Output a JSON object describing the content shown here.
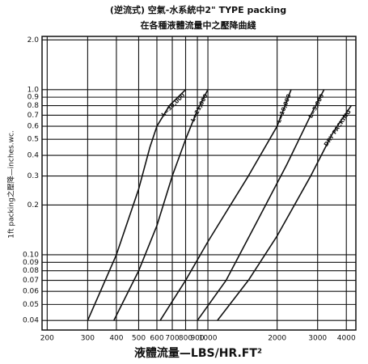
{
  "chart_data": {
    "type": "line",
    "title": "(逆流式) 空氣-水系統中2\" TYPE packing",
    "subtitle": "在各種液體流量中之壓降曲綫",
    "x_label": "液體流量—LBS/HR.FT²",
    "y_label": "1ft packing之壓降—inches.wc.",
    "log_x": true,
    "log_y": true,
    "grid": true,
    "xlim": [
      190,
      4400
    ],
    "ylim": [
      0.035,
      2.1
    ],
    "xticks": [
      200,
      300,
      400,
      500,
      600,
      700,
      800,
      900,
      1000,
      2000,
      3000,
      4000
    ],
    "yticks": [
      0.04,
      0.05,
      0.06,
      0.07,
      0.08,
      0.09,
      {
        "value": 0.1,
        "label": "0.10"
      },
      0.2,
      0.3,
      0.4,
      0.5,
      0.6,
      0.7,
      0.8,
      0.9,
      {
        "value": 1,
        "label": "1.0"
      },
      {
        "value": 2,
        "label": "2.0"
      }
    ],
    "series": [
      {
        "name": "L=30,000",
        "color": "#111111",
        "x": [
          300,
          400,
          500,
          560,
          600,
          680,
          800
        ],
        "values": [
          0.04,
          0.1,
          0.25,
          0.45,
          0.6,
          0.8,
          1.0
        ]
      },
      {
        "name": "L=21,000",
        "color": "#111111",
        "x": [
          390,
          500,
          600,
          700,
          800,
          900,
          1000
        ],
        "values": [
          0.04,
          0.08,
          0.15,
          0.3,
          0.5,
          0.75,
          1.0
        ]
      },
      {
        "name": "L=10,000",
        "color": "#111111",
        "x": [
          620,
          800,
          1000,
          1500,
          2000,
          2300
        ],
        "values": [
          0.04,
          0.07,
          0.12,
          0.3,
          0.6,
          1.0
        ]
      },
      {
        "name": "L=5,000",
        "color": "#111111",
        "x": [
          900,
          1200,
          1600,
          2200,
          2800,
          3200
        ],
        "values": [
          0.04,
          0.07,
          0.15,
          0.35,
          0.7,
          1.0
        ]
      },
      {
        "name": "DRY PACKING",
        "color": "#111111",
        "x": [
          1100,
          1500,
          2000,
          2800,
          3500,
          4200
        ],
        "values": [
          0.04,
          0.07,
          0.13,
          0.3,
          0.55,
          0.8
        ]
      }
    ]
  }
}
